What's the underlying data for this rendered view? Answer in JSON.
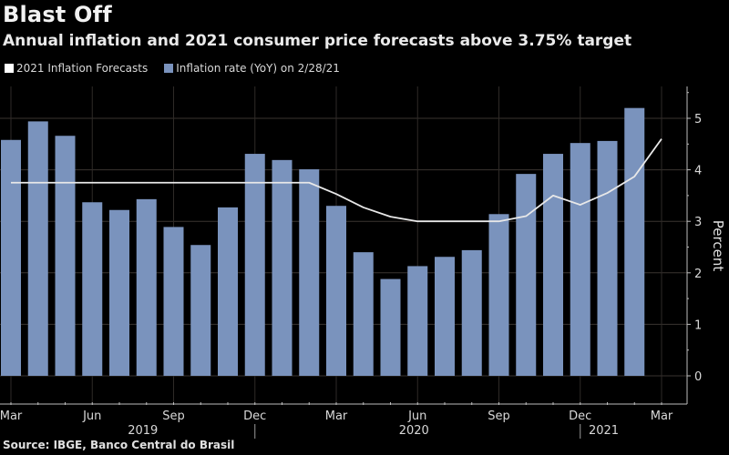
{
  "header": {
    "title": "Blast Off",
    "subtitle": "Annual inflation and 2021 consumer price forecasts above 3.75% target"
  },
  "legend": [
    {
      "label": "2021 Inflation Forecasts",
      "color": "#ffffff"
    },
    {
      "label": "Inflation rate (YoY) on 2/28/21",
      "color": "#7a93bd"
    }
  ],
  "source": "Source: IBGE, Banco Central do Brasil",
  "chart_data": {
    "type": "bar",
    "title": "Blast Off",
    "subtitle": "Annual inflation and 2021 consumer price forecasts above 3.75% target",
    "xlabel": "",
    "ylabel": "Percent",
    "ylim": [
      0,
      5.5
    ],
    "yticks": [
      0,
      1,
      2,
      3,
      4,
      5
    ],
    "grid": true,
    "legend_position": "top-left",
    "months": [
      "2019-03",
      "2019-04",
      "2019-05",
      "2019-06",
      "2019-07",
      "2019-08",
      "2019-09",
      "2019-10",
      "2019-11",
      "2019-12",
      "2020-01",
      "2020-02",
      "2020-03",
      "2020-04",
      "2020-05",
      "2020-06",
      "2020-07",
      "2020-08",
      "2020-09",
      "2020-10",
      "2020-11",
      "2020-12",
      "2021-01",
      "2021-02",
      "2021-03"
    ],
    "x_tick_labels": [
      {
        "label": "Mar",
        "month": "2019-03"
      },
      {
        "label": "Jun",
        "month": "2019-06"
      },
      {
        "label": "Sep",
        "month": "2019-09"
      },
      {
        "label": "Dec",
        "month": "2019-12"
      },
      {
        "label": "Mar",
        "month": "2020-03"
      },
      {
        "label": "Jun",
        "month": "2020-06"
      },
      {
        "label": "Sep",
        "month": "2020-09"
      },
      {
        "label": "Dec",
        "month": "2020-12"
      },
      {
        "label": "Mar",
        "month": "2021-03"
      }
    ],
    "year_labels": [
      {
        "label": "2019",
        "center_month": "2019-08"
      },
      {
        "label": "2020",
        "center_month": "2020-06"
      },
      {
        "label": "2021",
        "center_month": "2021-01"
      }
    ],
    "year_separators": [
      "2019-12",
      "2020-12"
    ],
    "series": [
      {
        "name": "Inflation rate (YoY) on 2/28/21",
        "type": "bar",
        "color": "#7a93bd",
        "values": [
          4.58,
          4.94,
          4.66,
          3.37,
          3.22,
          3.43,
          2.89,
          2.54,
          3.27,
          4.31,
          4.19,
          4.01,
          3.3,
          2.4,
          1.88,
          2.13,
          2.31,
          2.44,
          3.14,
          3.92,
          4.31,
          4.52,
          4.56,
          5.2,
          null
        ]
      },
      {
        "name": "2021 Inflation Forecasts",
        "type": "line",
        "color": "#ffffff",
        "values": [
          3.75,
          3.75,
          3.75,
          3.75,
          3.75,
          3.75,
          3.75,
          3.75,
          3.75,
          3.75,
          3.75,
          3.75,
          3.53,
          3.27,
          3.09,
          3.0,
          3.0,
          3.0,
          3.0,
          3.1,
          3.5,
          3.32,
          3.55,
          3.87,
          4.6
        ]
      }
    ]
  }
}
